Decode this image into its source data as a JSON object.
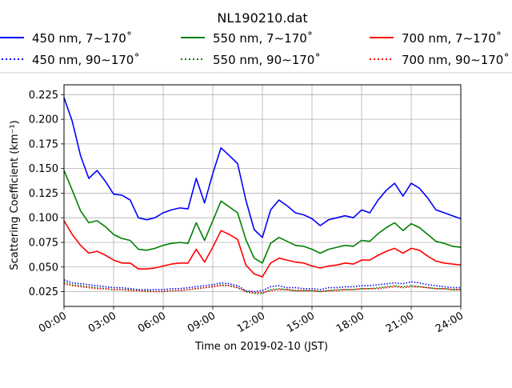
{
  "chart_data": {
    "type": "line",
    "title": "NL190210.dat",
    "xlabel": "Time on 2019-02-10 (JST)",
    "ylabel": "Scattering Coefficient (km⁻¹)",
    "xlim": [
      0,
      24
    ],
    "ylim": [
      0.01,
      0.235
    ],
    "x_ticks": [
      0,
      3,
      6,
      9,
      12,
      15,
      18,
      21,
      24
    ],
    "x_tick_labels": [
      "00:00",
      "03:00",
      "06:00",
      "09:00",
      "12:00",
      "15:00",
      "18:00",
      "21:00",
      "24:00"
    ],
    "y_ticks": [
      0.025,
      0.05,
      0.075,
      0.1,
      0.125,
      0.15,
      0.175,
      0.2,
      0.225
    ],
    "y_tick_labels": [
      "0.025",
      "0.050",
      "0.075",
      "0.100",
      "0.125",
      "0.150",
      "0.175",
      "0.200",
      "0.225"
    ],
    "grid": true,
    "legend_position": "top, outside plot, 3 columns",
    "x": [
      0,
      0.5,
      1,
      1.5,
      2,
      2.5,
      3,
      3.5,
      4,
      4.5,
      5,
      5.5,
      6,
      6.5,
      7,
      7.5,
      8,
      8.5,
      9,
      9.5,
      10,
      10.5,
      11,
      11.5,
      12,
      12.5,
      13,
      13.5,
      14,
      14.5,
      15,
      15.5,
      16,
      16.5,
      17,
      17.5,
      18,
      18.5,
      19,
      19.5,
      20,
      20.5,
      21,
      21.5,
      22,
      22.5,
      23,
      23.5,
      24
    ],
    "series": [
      {
        "name": "450 nm, 7∼170˚",
        "color": "#0000ff",
        "style": "solid",
        "values": [
          0.222,
          0.198,
          0.163,
          0.14,
          0.148,
          0.137,
          0.124,
          0.123,
          0.118,
          0.1,
          0.098,
          0.1,
          0.105,
          0.108,
          0.11,
          0.109,
          0.14,
          0.115,
          0.145,
          0.171,
          0.163,
          0.155,
          0.118,
          0.088,
          0.08,
          0.108,
          0.118,
          0.112,
          0.105,
          0.103,
          0.099,
          0.092,
          0.098,
          0.1,
          0.102,
          0.1,
          0.108,
          0.105,
          0.118,
          0.128,
          0.135,
          0.122,
          0.135,
          0.13,
          0.12,
          0.108,
          0.105,
          0.102,
          0.099
        ]
      },
      {
        "name": "450 nm, 90∼170˚",
        "color": "#0000ff",
        "style": "dotted",
        "values": [
          0.037,
          0.034,
          0.033,
          0.032,
          0.031,
          0.03,
          0.029,
          0.029,
          0.028,
          0.027,
          0.027,
          0.027,
          0.027,
          0.028,
          0.028,
          0.029,
          0.03,
          0.031,
          0.032,
          0.034,
          0.033,
          0.031,
          0.026,
          0.025,
          0.026,
          0.03,
          0.031,
          0.029,
          0.029,
          0.028,
          0.028,
          0.027,
          0.029,
          0.029,
          0.03,
          0.03,
          0.031,
          0.031,
          0.032,
          0.033,
          0.034,
          0.033,
          0.035,
          0.034,
          0.032,
          0.031,
          0.03,
          0.029,
          0.029
        ]
      },
      {
        "name": "550 nm, 7∼170˚",
        "color": "#008000",
        "style": "solid",
        "values": [
          0.148,
          0.128,
          0.107,
          0.095,
          0.097,
          0.091,
          0.083,
          0.079,
          0.077,
          0.068,
          0.067,
          0.069,
          0.072,
          0.074,
          0.075,
          0.074,
          0.095,
          0.077,
          0.097,
          0.117,
          0.111,
          0.105,
          0.078,
          0.059,
          0.054,
          0.074,
          0.08,
          0.076,
          0.072,
          0.071,
          0.068,
          0.064,
          0.068,
          0.07,
          0.072,
          0.071,
          0.077,
          0.076,
          0.084,
          0.09,
          0.095,
          0.087,
          0.094,
          0.09,
          0.083,
          0.076,
          0.074,
          0.071,
          0.07
        ]
      },
      {
        "name": "550 nm, 90∼170˚",
        "color": "#008000",
        "style": "dotted",
        "values": [
          0.035,
          0.032,
          0.031,
          0.03,
          0.029,
          0.028,
          0.027,
          0.027,
          0.027,
          0.026,
          0.026,
          0.025,
          0.025,
          0.026,
          0.026,
          0.027,
          0.028,
          0.029,
          0.03,
          0.032,
          0.031,
          0.029,
          0.025,
          0.023,
          0.023,
          0.027,
          0.028,
          0.027,
          0.026,
          0.026,
          0.026,
          0.025,
          0.026,
          0.027,
          0.027,
          0.027,
          0.028,
          0.028,
          0.029,
          0.03,
          0.031,
          0.03,
          0.031,
          0.03,
          0.029,
          0.028,
          0.028,
          0.027,
          0.027
        ]
      },
      {
        "name": "700 nm, 7∼170˚",
        "color": "#ff0000",
        "style": "solid",
        "values": [
          0.097,
          0.083,
          0.072,
          0.064,
          0.066,
          0.062,
          0.057,
          0.054,
          0.054,
          0.048,
          0.048,
          0.049,
          0.051,
          0.053,
          0.054,
          0.054,
          0.068,
          0.055,
          0.07,
          0.087,
          0.083,
          0.078,
          0.052,
          0.043,
          0.04,
          0.054,
          0.059,
          0.057,
          0.055,
          0.054,
          0.051,
          0.049,
          0.051,
          0.052,
          0.054,
          0.053,
          0.057,
          0.057,
          0.062,
          0.066,
          0.069,
          0.064,
          0.069,
          0.067,
          0.061,
          0.056,
          0.054,
          0.053,
          0.052
        ]
      },
      {
        "name": "700 nm, 90∼170˚",
        "color": "#ff0000",
        "style": "dotted",
        "values": [
          0.033,
          0.031,
          0.03,
          0.029,
          0.028,
          0.028,
          0.027,
          0.027,
          0.026,
          0.026,
          0.025,
          0.025,
          0.025,
          0.026,
          0.026,
          0.027,
          0.028,
          0.029,
          0.03,
          0.031,
          0.031,
          0.029,
          0.025,
          0.024,
          0.024,
          0.026,
          0.027,
          0.027,
          0.026,
          0.026,
          0.026,
          0.025,
          0.026,
          0.026,
          0.027,
          0.027,
          0.028,
          0.028,
          0.028,
          0.029,
          0.03,
          0.029,
          0.03,
          0.03,
          0.029,
          0.028,
          0.028,
          0.027,
          0.027
        ]
      }
    ]
  }
}
